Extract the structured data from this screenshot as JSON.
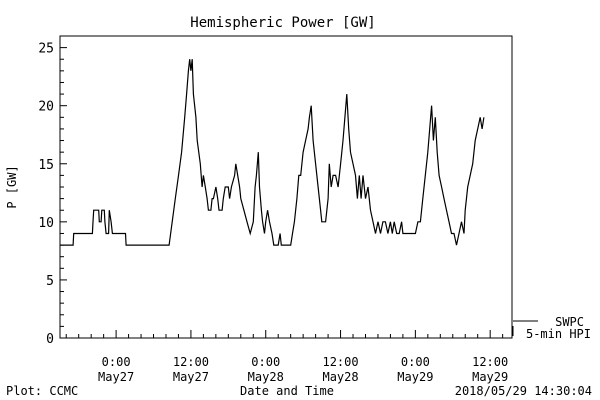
{
  "chart_data": {
    "type": "line",
    "title": "Hemispheric Power [GW]",
    "xlabel": "Date and Time",
    "ylabel": "P [GW]",
    "x_unit": "hours relative to May27 0:00",
    "xlim": [
      -9,
      63.5
    ],
    "ylim": [
      0,
      26
    ],
    "y_ticks": [
      0,
      5,
      10,
      15,
      20,
      25
    ],
    "x_ticks": [
      {
        "t": 0,
        "time": "0:00",
        "date": "May27"
      },
      {
        "t": 12,
        "time": "12:00",
        "date": "May27"
      },
      {
        "t": 24,
        "time": "0:00",
        "date": "May28"
      },
      {
        "t": 36,
        "time": "12:00",
        "date": "May28"
      },
      {
        "t": 48,
        "time": "0:00",
        "date": "May29"
      },
      {
        "t": 60,
        "time": "12:00",
        "date": "May29"
      }
    ],
    "grid": false,
    "color": "#000000",
    "series": [
      {
        "name": "5-min HPI",
        "points": [
          [
            -9.0,
            8
          ],
          [
            -6.9,
            8
          ],
          [
            -6.8,
            9
          ],
          [
            -3.8,
            9
          ],
          [
            -3.7,
            10
          ],
          [
            -3.6,
            11
          ],
          [
            -2.8,
            11
          ],
          [
            -2.7,
            10
          ],
          [
            -2.4,
            10
          ],
          [
            -2.3,
            11
          ],
          [
            -1.9,
            11
          ],
          [
            -1.8,
            10
          ],
          [
            -1.6,
            9
          ],
          [
            -1.2,
            9
          ],
          [
            -1.1,
            11
          ],
          [
            -0.8,
            10
          ],
          [
            -0.6,
            9
          ],
          [
            -0.2,
            9
          ],
          [
            0.2,
            9
          ],
          [
            0.4,
            9
          ],
          [
            1.5,
            9
          ],
          [
            1.6,
            8
          ],
          [
            8.5,
            8
          ],
          [
            9.0,
            10
          ],
          [
            9.5,
            12
          ],
          [
            10.0,
            14
          ],
          [
            10.5,
            16
          ],
          [
            11.0,
            19
          ],
          [
            11.3,
            21
          ],
          [
            11.6,
            23
          ],
          [
            11.8,
            24
          ],
          [
            12.0,
            23
          ],
          [
            12.2,
            24
          ],
          [
            12.4,
            21
          ],
          [
            12.8,
            19
          ],
          [
            13.0,
            17
          ],
          [
            13.5,
            15
          ],
          [
            13.8,
            13
          ],
          [
            14.0,
            14
          ],
          [
            14.3,
            13
          ],
          [
            14.6,
            12
          ],
          [
            14.8,
            11
          ],
          [
            15.2,
            11
          ],
          [
            15.4,
            12
          ],
          [
            15.6,
            12
          ],
          [
            16.0,
            13
          ],
          [
            16.3,
            12
          ],
          [
            16.5,
            11
          ],
          [
            17.0,
            11
          ],
          [
            17.2,
            12
          ],
          [
            17.5,
            13
          ],
          [
            18.0,
            13
          ],
          [
            18.2,
            12
          ],
          [
            18.5,
            13
          ],
          [
            19.0,
            14
          ],
          [
            19.2,
            15
          ],
          [
            19.5,
            14
          ],
          [
            19.8,
            13
          ],
          [
            20.0,
            12
          ],
          [
            20.5,
            11
          ],
          [
            21.0,
            10
          ],
          [
            21.5,
            9
          ],
          [
            22.0,
            10
          ],
          [
            22.3,
            13
          ],
          [
            22.5,
            14
          ],
          [
            22.8,
            16
          ],
          [
            23.0,
            13
          ],
          [
            23.3,
            11
          ],
          [
            23.5,
            10
          ],
          [
            23.8,
            9
          ],
          [
            24.0,
            10
          ],
          [
            24.3,
            11
          ],
          [
            24.6,
            10
          ],
          [
            25.0,
            9
          ],
          [
            25.3,
            8
          ],
          [
            26.0,
            8
          ],
          [
            26.3,
            9
          ],
          [
            26.5,
            8
          ],
          [
            28.0,
            8
          ],
          [
            28.3,
            9
          ],
          [
            28.6,
            10
          ],
          [
            29.0,
            12
          ],
          [
            29.3,
            14
          ],
          [
            29.6,
            14
          ],
          [
            30.0,
            16
          ],
          [
            30.4,
            17
          ],
          [
            30.8,
            18
          ],
          [
            31.0,
            19
          ],
          [
            31.3,
            20
          ],
          [
            31.6,
            17
          ],
          [
            32.0,
            15
          ],
          [
            32.4,
            13
          ],
          [
            32.8,
            11
          ],
          [
            33.0,
            10
          ],
          [
            33.6,
            10
          ],
          [
            34.0,
            12
          ],
          [
            34.2,
            15
          ],
          [
            34.5,
            13
          ],
          [
            34.8,
            14
          ],
          [
            35.2,
            14
          ],
          [
            35.6,
            13
          ],
          [
            36.0,
            15
          ],
          [
            36.4,
            17
          ],
          [
            36.7,
            19
          ],
          [
            37.0,
            21
          ],
          [
            37.3,
            18
          ],
          [
            37.6,
            16
          ],
          [
            38.0,
            15
          ],
          [
            38.4,
            14
          ],
          [
            38.7,
            12
          ],
          [
            39.0,
            14
          ],
          [
            39.3,
            12
          ],
          [
            39.6,
            14
          ],
          [
            40.0,
            12
          ],
          [
            40.4,
            13
          ],
          [
            40.8,
            11
          ],
          [
            41.2,
            10
          ],
          [
            41.6,
            9
          ],
          [
            42.0,
            10
          ],
          [
            42.4,
            9
          ],
          [
            42.8,
            10
          ],
          [
            43.2,
            10
          ],
          [
            43.6,
            9
          ],
          [
            44.0,
            10
          ],
          [
            44.3,
            9
          ],
          [
            44.6,
            10
          ],
          [
            45.0,
            9
          ],
          [
            45.4,
            9
          ],
          [
            45.8,
            10
          ],
          [
            46.0,
            9
          ],
          [
            48.0,
            9
          ],
          [
            48.4,
            10
          ],
          [
            48.8,
            10
          ],
          [
            49.2,
            12
          ],
          [
            49.6,
            14
          ],
          [
            50.0,
            16
          ],
          [
            50.3,
            18
          ],
          [
            50.6,
            20
          ],
          [
            50.9,
            17
          ],
          [
            51.2,
            19
          ],
          [
            51.5,
            16
          ],
          [
            51.8,
            14
          ],
          [
            52.2,
            13
          ],
          [
            52.6,
            12
          ],
          [
            53.0,
            11
          ],
          [
            53.4,
            10
          ],
          [
            53.8,
            9
          ],
          [
            54.2,
            9
          ],
          [
            54.6,
            8
          ],
          [
            55.0,
            9
          ],
          [
            55.4,
            10
          ],
          [
            55.8,
            9
          ],
          [
            56.0,
            11
          ],
          [
            56.4,
            13
          ],
          [
            56.8,
            14
          ],
          [
            57.2,
            15
          ],
          [
            57.6,
            17
          ],
          [
            58.0,
            18
          ],
          [
            58.4,
            19
          ],
          [
            58.7,
            18
          ],
          [
            59.0,
            19
          ]
        ]
      },
      {
        "name": "SWPC",
        "points": []
      }
    ],
    "legend": [
      "SWPC",
      "5-min HPI"
    ],
    "annotations": {
      "left": "Plot: CCMC",
      "right": "2018/05/29 14:30:04"
    }
  }
}
